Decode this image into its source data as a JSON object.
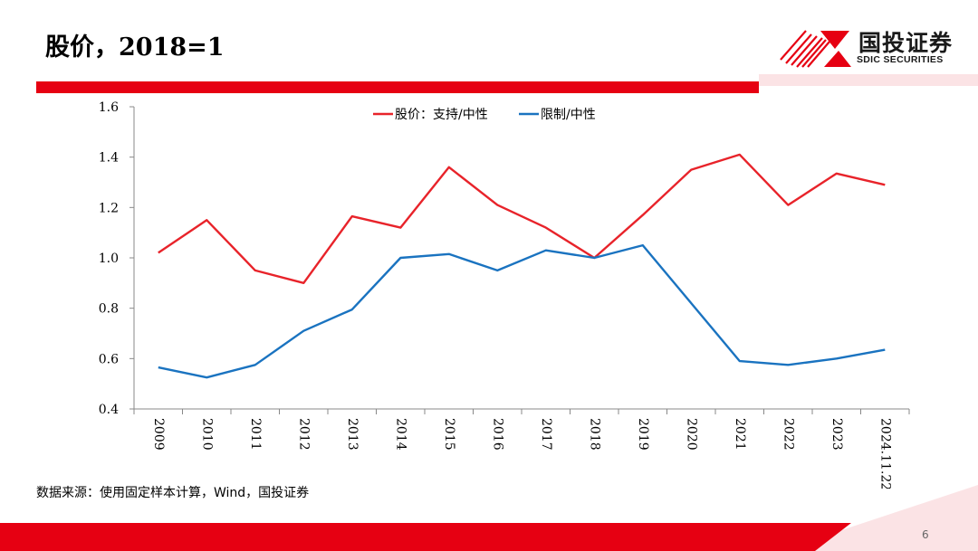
{
  "header": {
    "title": "股价，2018=1",
    "logo": {
      "cn": "国投证券",
      "en": "SDIC SECURITIES",
      "icon": "sdic-logo-icon"
    }
  },
  "footer": {
    "source": "数据来源：使用固定样本计算，Wind，国投证券",
    "page": "6"
  },
  "colors": {
    "accent_red": "#e60012",
    "series_red": "#e8232a",
    "series_blue": "#1a73c0"
  },
  "chart_data": {
    "type": "line",
    "categories": [
      "2009",
      "2010",
      "2011",
      "2012",
      "2013",
      "2014",
      "2015",
      "2016",
      "2017",
      "2018",
      "2019",
      "2020",
      "2021",
      "2022",
      "2023",
      "2024.11.22"
    ],
    "series": [
      {
        "name": "股价：支持/中性",
        "color": "#e8232a",
        "values": [
          1.02,
          1.15,
          0.95,
          0.9,
          1.165,
          1.12,
          1.36,
          1.21,
          1.12,
          1.0,
          1.17,
          1.35,
          1.41,
          1.21,
          1.335,
          1.29
        ]
      },
      {
        "name": "限制/中性",
        "color": "#1a73c0",
        "values": [
          0.565,
          0.525,
          0.575,
          0.71,
          0.795,
          1.0,
          1.015,
          0.95,
          1.03,
          1.0,
          1.05,
          0.82,
          0.59,
          0.575,
          0.6,
          0.635
        ]
      }
    ],
    "ylim": [
      0.4,
      1.6
    ],
    "yticks": [
      "0.4",
      "0.6",
      "0.8",
      "1.0",
      "1.2",
      "1.4",
      "1.6"
    ],
    "legend": "top-center",
    "grid": false
  }
}
